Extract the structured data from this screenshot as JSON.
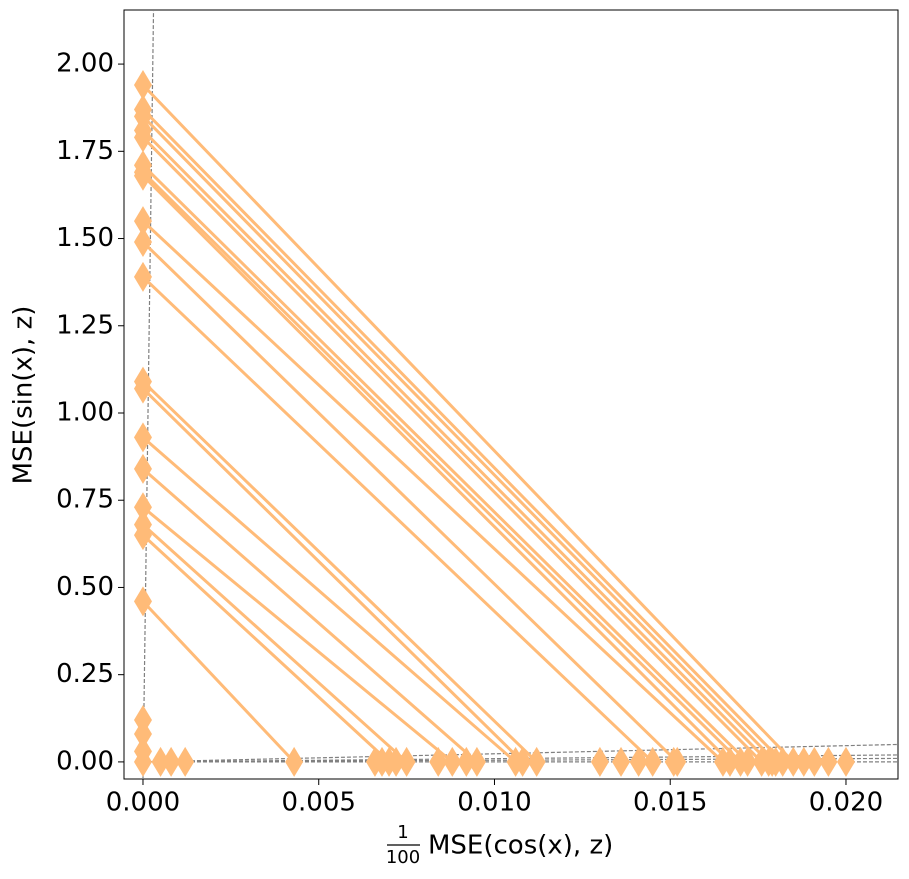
{
  "chart_data": {
    "type": "segments",
    "x_label": "MSE(cos(x), z)",
    "x_label_fraction": {
      "numerator": "1",
      "denominator": "100"
    },
    "y_label": "MSE(sin(x), z)",
    "color": "#ffbb78",
    "reference_color": "#808080",
    "xlim": [
      -0.00054,
      0.02148
    ],
    "ylim": [
      -0.049,
      2.155
    ],
    "xticks": [
      {
        "value": 0,
        "label": "0.000"
      },
      {
        "value": 0.005,
        "label": "0.005"
      },
      {
        "value": 0.01,
        "label": "0.010"
      },
      {
        "value": 0.015,
        "label": "0.015"
      },
      {
        "value": 0.02,
        "label": "0.020"
      }
    ],
    "yticks": [
      {
        "value": 0,
        "label": "0.00"
      },
      {
        "value": 0.25,
        "label": "0.25"
      },
      {
        "value": 0.5,
        "label": "0.50"
      },
      {
        "value": 0.75,
        "label": "0.75"
      },
      {
        "value": 1,
        "label": "1.00"
      },
      {
        "value": 1.25,
        "label": "1.25"
      },
      {
        "value": 1.5,
        "label": "1.50"
      },
      {
        "value": 1.75,
        "label": "1.75"
      },
      {
        "value": 2,
        "label": "2.00"
      }
    ],
    "segments": [
      {
        "x": [
          0,
          0.0185
        ],
        "y": [
          1.94,
          0
        ]
      },
      {
        "x": [
          0,
          0.0182
        ],
        "y": [
          1.87,
          0
        ]
      },
      {
        "x": [
          0,
          0.018
        ],
        "y": [
          1.85,
          0
        ]
      },
      {
        "x": [
          0,
          0.0178
        ],
        "y": [
          1.81,
          0
        ]
      },
      {
        "x": [
          0,
          0.0176
        ],
        "y": [
          1.79,
          0
        ]
      },
      {
        "x": [
          0,
          0.0172
        ],
        "y": [
          1.71,
          0
        ]
      },
      {
        "x": [
          0,
          0.017
        ],
        "y": [
          1.69,
          0
        ]
      },
      {
        "x": [
          0,
          0.0167
        ],
        "y": [
          1.68,
          0
        ]
      },
      {
        "x": [
          0,
          0.0165
        ],
        "y": [
          1.55,
          0
        ]
      },
      {
        "x": [
          0,
          0.0152
        ],
        "y": [
          1.49,
          0
        ]
      },
      {
        "x": [
          0,
          0.0145
        ],
        "y": [
          1.39,
          0
        ]
      },
      {
        "x": [
          0,
          0.0112
        ],
        "y": [
          1.09,
          0
        ]
      },
      {
        "x": [
          0,
          0.0108
        ],
        "y": [
          1.07,
          0
        ]
      },
      {
        "x": [
          0,
          0.0106
        ],
        "y": [
          0.93,
          0
        ]
      },
      {
        "x": [
          0,
          0.0095
        ],
        "y": [
          0.84,
          0
        ]
      },
      {
        "x": [
          0,
          0.0088
        ],
        "y": [
          0.73,
          0
        ]
      },
      {
        "x": [
          0,
          0.0075
        ],
        "y": [
          0.68,
          0
        ]
      },
      {
        "x": [
          0,
          0.007
        ],
        "y": [
          0.65,
          0
        ]
      },
      {
        "x": [
          0,
          0.0043
        ],
        "y": [
          0.46,
          0
        ]
      }
    ],
    "points": {
      "x": [
        0,
        0.0005,
        0.0008,
        0.0012,
        0.0066,
        0.0068,
        0.0072,
        0.0084,
        0.0092,
        0.013,
        0.0136,
        0.0141,
        0.0151,
        0.0179,
        0.0188,
        0.0191,
        0.0195,
        0.02,
        0,
        0,
        0
      ],
      "y": [
        0,
        0,
        0,
        0,
        0,
        0,
        0,
        0,
        0,
        0,
        0,
        0,
        0,
        0,
        0,
        0,
        0,
        0,
        0.12,
        0.08,
        0.03
      ]
    },
    "reference_lines": [
      {
        "x": [
          0,
          0.0003
        ],
        "y": [
          -0.049,
          2.155
        ]
      },
      {
        "x": [
          0,
          0.02148
        ],
        "y": [
          0,
          0.05
        ]
      },
      {
        "x": [
          0,
          0.02148
        ],
        "y": [
          0,
          0.02
        ]
      },
      {
        "x": [
          0,
          0.02148
        ],
        "y": [
          0,
          0.01
        ]
      },
      {
        "x": [
          0,
          0.02148
        ],
        "y": [
          0,
          0
        ]
      }
    ]
  }
}
